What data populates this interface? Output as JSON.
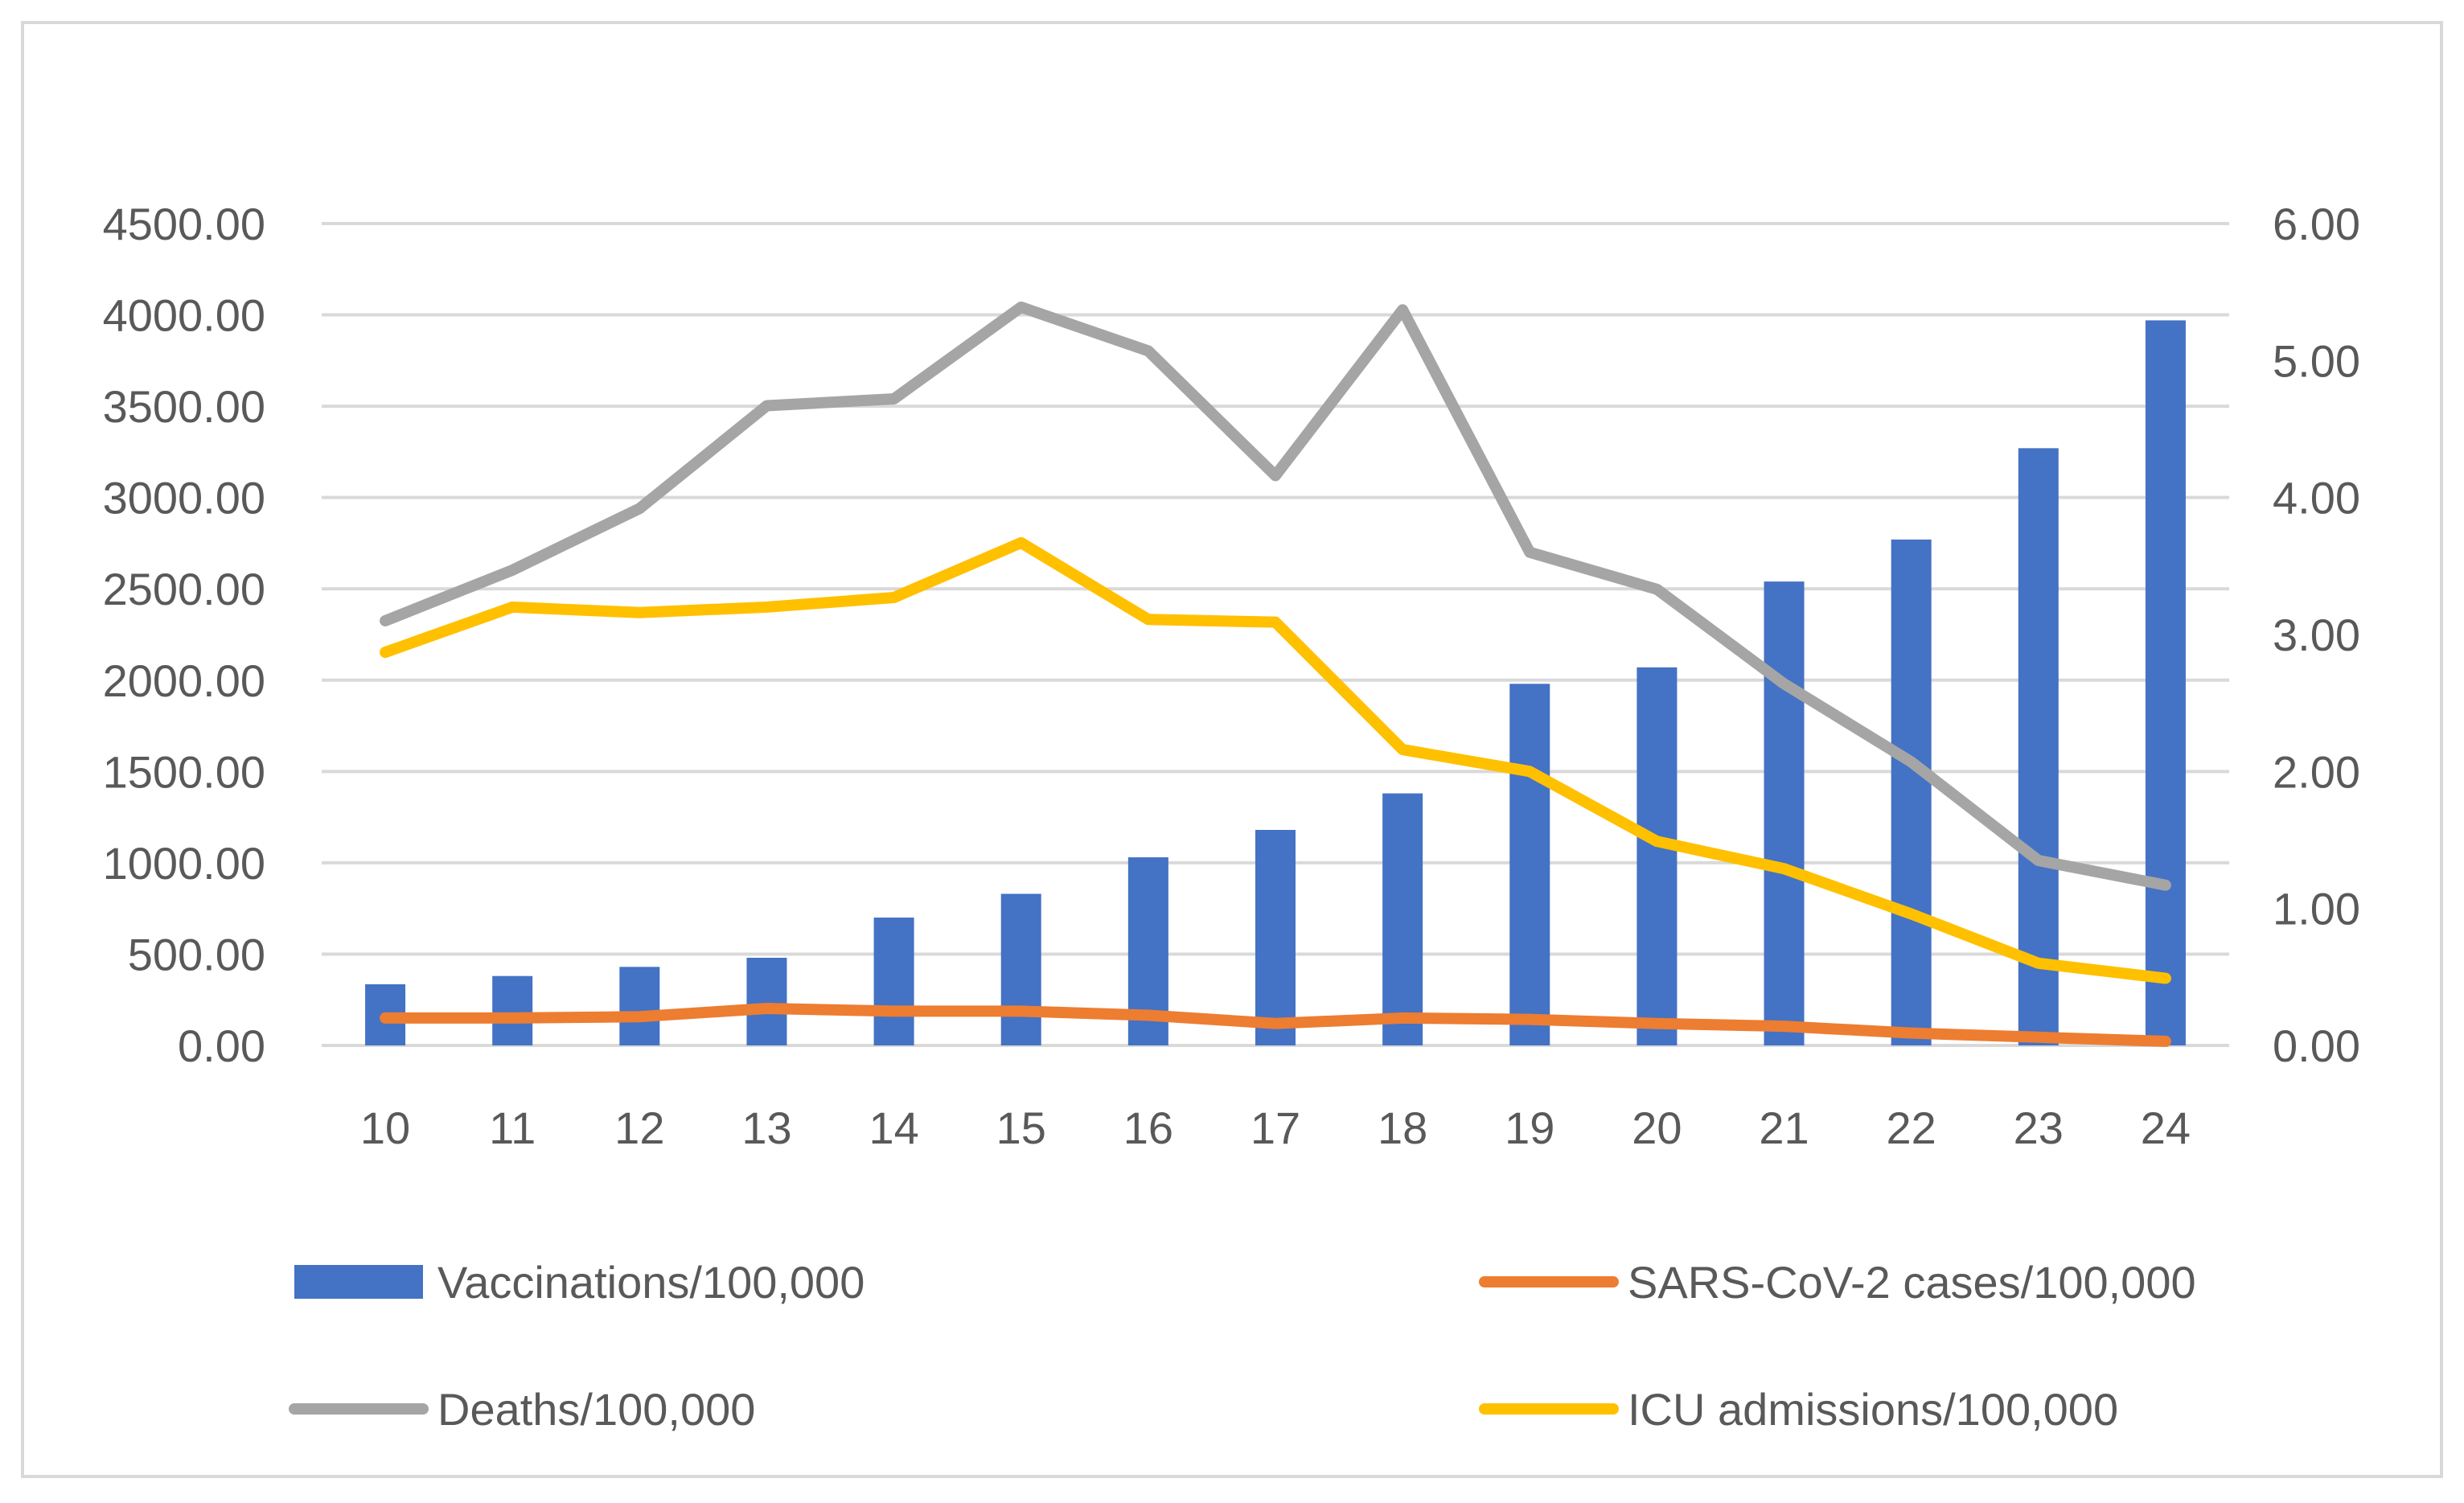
{
  "chart_data": {
    "type": "bar",
    "title": "",
    "xlabel": "",
    "ylabel": "",
    "categories": [
      "10",
      "11",
      "12",
      "13",
      "14",
      "15",
      "16",
      "17",
      "18",
      "19",
      "20",
      "21",
      "22",
      "23",
      "24"
    ],
    "y_left": {
      "min": 0,
      "max": 4500,
      "step": 500,
      "tick_labels": [
        "0.00",
        "500.00",
        "1000.00",
        "1500.00",
        "2000.00",
        "2500.00",
        "3000.00",
        "3500.00",
        "4000.00",
        "4500.00"
      ]
    },
    "y_right": {
      "min": 0,
      "max": 6,
      "step": 1,
      "tick_labels": [
        "0.00",
        "1.00",
        "2.00",
        "3.00",
        "4.00",
        "5.00",
        "6.00"
      ]
    },
    "grid": true,
    "legend_position": "bottom",
    "series": [
      {
        "name": "Vaccinations/100,000",
        "kind": "bar",
        "axis": "left",
        "color": "#4472C4",
        "values": [
          335,
          380,
          430,
          480,
          700,
          830,
          1030,
          1180,
          1380,
          1980,
          2070,
          2540,
          2770,
          3270,
          3970
        ]
      },
      {
        "name": "SARS-CoV-2 cases/100,000",
        "kind": "line",
        "axis": "right",
        "color": "#ED7D31",
        "values": [
          0.2,
          0.2,
          0.21,
          0.27,
          0.25,
          0.25,
          0.22,
          0.16,
          0.2,
          0.19,
          0.16,
          0.14,
          0.09,
          0.06,
          0.03
        ]
      },
      {
        "name": "Deaths/100,000",
        "kind": "line",
        "axis": "right",
        "color": "#A5A5A5",
        "values": [
          3.1,
          3.47,
          3.92,
          4.67,
          4.72,
          5.39,
          5.07,
          4.16,
          5.37,
          3.6,
          3.33,
          2.64,
          2.07,
          1.35,
          1.17
        ]
      },
      {
        "name": "ICU admissions/100,000",
        "kind": "line",
        "axis": "right",
        "color": "#FFC000",
        "values": [
          2.87,
          3.2,
          3.16,
          3.2,
          3.27,
          3.67,
          3.11,
          3.09,
          2.16,
          2.0,
          1.49,
          1.29,
          0.96,
          0.6,
          0.49
        ]
      }
    ]
  }
}
